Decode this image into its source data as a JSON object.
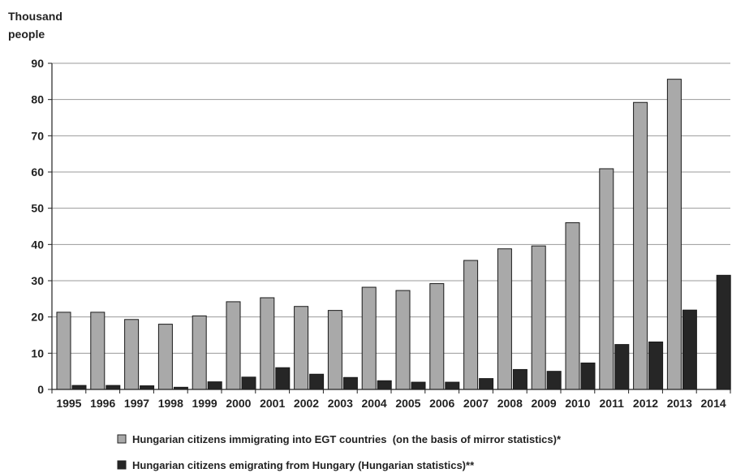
{
  "chart_data": {
    "type": "bar",
    "ylabel_lines": [
      "Thousand",
      "people"
    ],
    "xlabel": "",
    "ylim": [
      0,
      90
    ],
    "yticks": [
      0,
      10,
      20,
      30,
      40,
      50,
      60,
      70,
      80,
      90
    ],
    "grid": true,
    "legend_placement": "bottom",
    "categories": [
      "1995",
      "1996",
      "1997",
      "1998",
      "1999",
      "2000",
      "2001",
      "2002",
      "2003",
      "2004",
      "2005",
      "2006",
      "2007",
      "2008",
      "2009",
      "2010",
      "2011",
      "2012",
      "2013",
      "2014"
    ],
    "series": [
      {
        "name": "Hungarian citizens immigrating into EGT countries  (on the basis of mirror statistics)*",
        "color": "#a9a9a9",
        "values": [
          21.3,
          21.3,
          19.3,
          18.0,
          20.3,
          24.2,
          25.3,
          22.9,
          21.8,
          28.2,
          27.3,
          29.2,
          35.6,
          38.8,
          39.6,
          46.0,
          60.9,
          79.2,
          85.6,
          null
        ]
      },
      {
        "name": "Hungarian citizens emigrating from Hungary (Hungarian statistics)**",
        "color": "#262626",
        "values": [
          1.1,
          1.1,
          1.0,
          0.6,
          2.1,
          3.4,
          6.0,
          4.2,
          3.3,
          2.4,
          2.0,
          2.0,
          3.0,
          5.5,
          5.0,
          7.3,
          12.4,
          13.1,
          21.9,
          31.5
        ]
      }
    ]
  }
}
